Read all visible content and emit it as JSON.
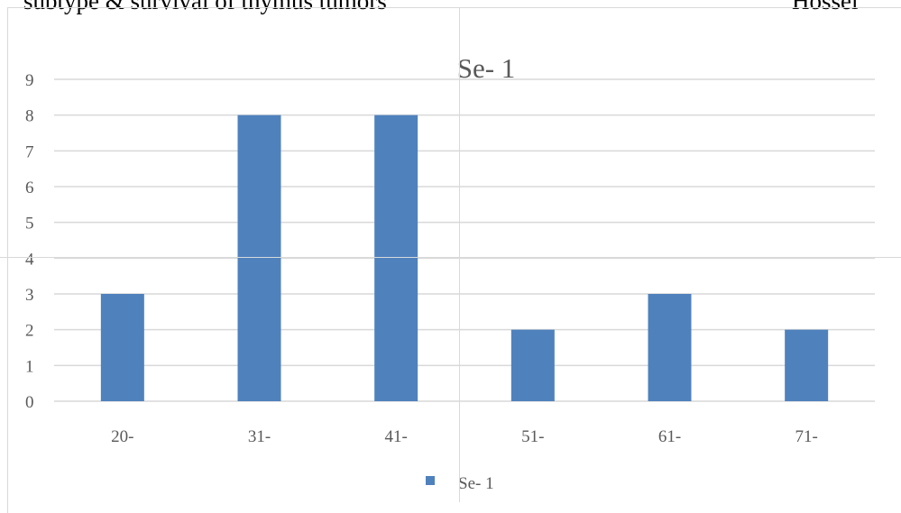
{
  "page": {
    "header_left": "subtype  & survival of thymus tumors",
    "header_right": "Hossei"
  },
  "colors": {
    "bar": "#4f81bd",
    "grid": "#d9d9d9",
    "text": "#595959"
  },
  "chart_data": {
    "type": "bar",
    "title": "Se- 1",
    "xlabel": "",
    "ylabel": "",
    "categories": [
      "20-",
      "31-",
      "41-",
      "51-",
      "61-",
      "71-"
    ],
    "series": [
      {
        "name": "Se- 1",
        "values": [
          3,
          8,
          8,
          2,
          3,
          2
        ]
      }
    ],
    "ylim": [
      0,
      9
    ],
    "yticks": [
      0,
      1,
      2,
      3,
      4,
      5,
      6,
      7,
      8,
      9
    ],
    "grid": true,
    "legend_position": "bottom"
  }
}
